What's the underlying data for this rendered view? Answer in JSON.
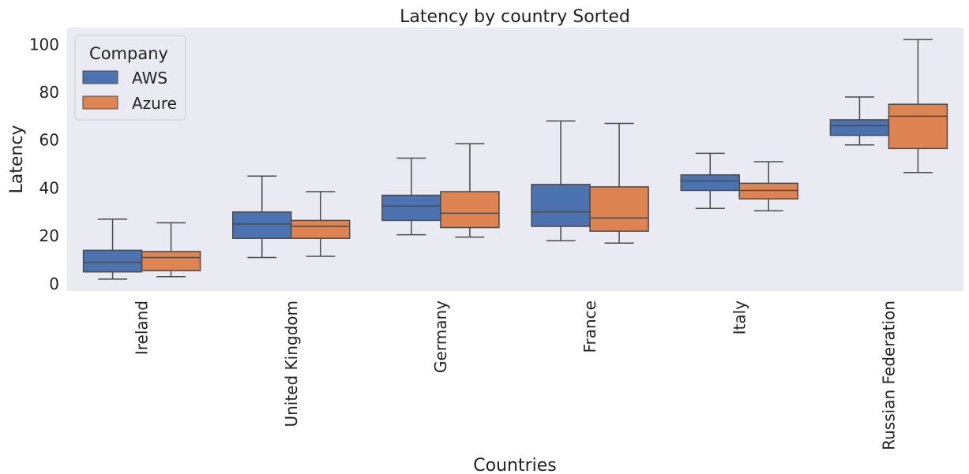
{
  "chart_data": {
    "type": "box",
    "title": "Latency by country Sorted",
    "xlabel": "Countries",
    "ylabel": "Latency",
    "ylim": [
      -3,
      107
    ],
    "yticks": [
      0,
      20,
      40,
      60,
      80,
      100
    ],
    "grid": false,
    "legend": {
      "title": "Company",
      "placement": "top-left"
    },
    "categories": [
      "Ireland",
      "United Kingdom",
      "Germany",
      "France",
      "Italy",
      "Russian Federation"
    ],
    "series": [
      {
        "name": "AWS",
        "color": "#4C72B0",
        "boxes": [
          {
            "whislo": 2,
            "q1": 5,
            "med": 9,
            "q3": 14,
            "whishi": 27
          },
          {
            "whislo": 11,
            "q1": 19,
            "med": 25,
            "q3": 30,
            "whishi": 45
          },
          {
            "whislo": 20.5,
            "q1": 26.5,
            "med": 32.5,
            "q3": 37,
            "whishi": 52.5
          },
          {
            "whislo": 18,
            "q1": 24,
            "med": 30,
            "q3": 41.5,
            "whishi": 68
          },
          {
            "whislo": 31.5,
            "q1": 39,
            "med": 43,
            "q3": 45.5,
            "whishi": 54.5
          },
          {
            "whislo": 58,
            "q1": 62,
            "med": 66,
            "q3": 68.5,
            "whishi": 78
          }
        ]
      },
      {
        "name": "Azure",
        "color": "#DD8452",
        "boxes": [
          {
            "whislo": 3,
            "q1": 5.5,
            "med": 11,
            "q3": 13.5,
            "whishi": 25.5
          },
          {
            "whislo": 11.5,
            "q1": 19,
            "med": 24,
            "q3": 26.5,
            "whishi": 38.5
          },
          {
            "whislo": 19.5,
            "q1": 23.5,
            "med": 29.5,
            "q3": 38.5,
            "whishi": 58.5
          },
          {
            "whislo": 17,
            "q1": 22,
            "med": 27.5,
            "q3": 40.5,
            "whishi": 67
          },
          {
            "whislo": 30.5,
            "q1": 35.5,
            "med": 39,
            "q3": 42,
            "whishi": 51
          },
          {
            "whislo": 46.5,
            "q1": 56.5,
            "med": 70,
            "q3": 75,
            "whishi": 102
          }
        ]
      }
    ]
  }
}
